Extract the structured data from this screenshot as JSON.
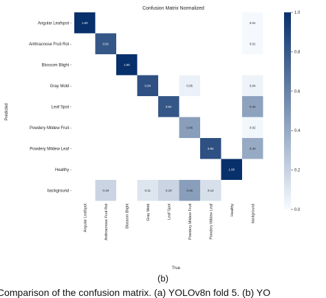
{
  "chart_data": {
    "type": "heatmap",
    "title": "Confusion Matrix Normalized",
    "xlabel": "True",
    "ylabel": "Predicted",
    "x_categories": [
      "Angular Leafspot",
      "Anthracnose Fruit Rot",
      "Blossom Blight",
      "Gray Mold",
      "Leaf Spot",
      "Powdery Mildew Fruit",
      "Powdery Mildew Leaf",
      "Healthy",
      "background"
    ],
    "y_categories": [
      "Angular Leafspot",
      "Anthracnose Fruit Rot",
      "Blossom Blight",
      "Gray Mold",
      "Leaf Spot",
      "Powdery Mildew Fruit",
      "Powdery Mildew Leaf",
      "Healthy",
      "background"
    ],
    "values": [
      [
        1.0,
        null,
        null,
        null,
        null,
        null,
        null,
        null,
        0.01
      ],
      [
        null,
        0.81,
        null,
        null,
        null,
        null,
        null,
        null,
        0.01
      ],
      [
        null,
        null,
        1.0,
        null,
        null,
        null,
        null,
        null,
        null
      ],
      [
        null,
        null,
        null,
        0.84,
        null,
        0.05,
        null,
        null,
        0.04
      ],
      [
        null,
        null,
        null,
        null,
        0.81,
        null,
        null,
        null,
        0.44
      ],
      [
        null,
        null,
        null,
        null,
        null,
        0.46,
        null,
        null,
        0.02
      ],
      [
        null,
        null,
        null,
        null,
        null,
        null,
        0.84,
        null,
        0.4
      ],
      [
        null,
        null,
        null,
        null,
        null,
        null,
        null,
        1.0,
        null
      ],
      [
        null,
        0.19,
        null,
        0.11,
        0.19,
        0.46,
        0.14,
        null,
        null
      ]
    ],
    "colorbar": {
      "min": 0.0,
      "max": 1.0,
      "ticks": [
        "0.0",
        "0.2",
        "0.4",
        "0.6",
        "0.8",
        "1.0"
      ]
    },
    "colormap": {
      "low": "#f7fbff",
      "high": "#08306b"
    }
  },
  "caption": {
    "label": "(b)",
    "text": "Comparison of the confusion matrix. (a) YOLOv8n fold 5. (b) YO"
  }
}
